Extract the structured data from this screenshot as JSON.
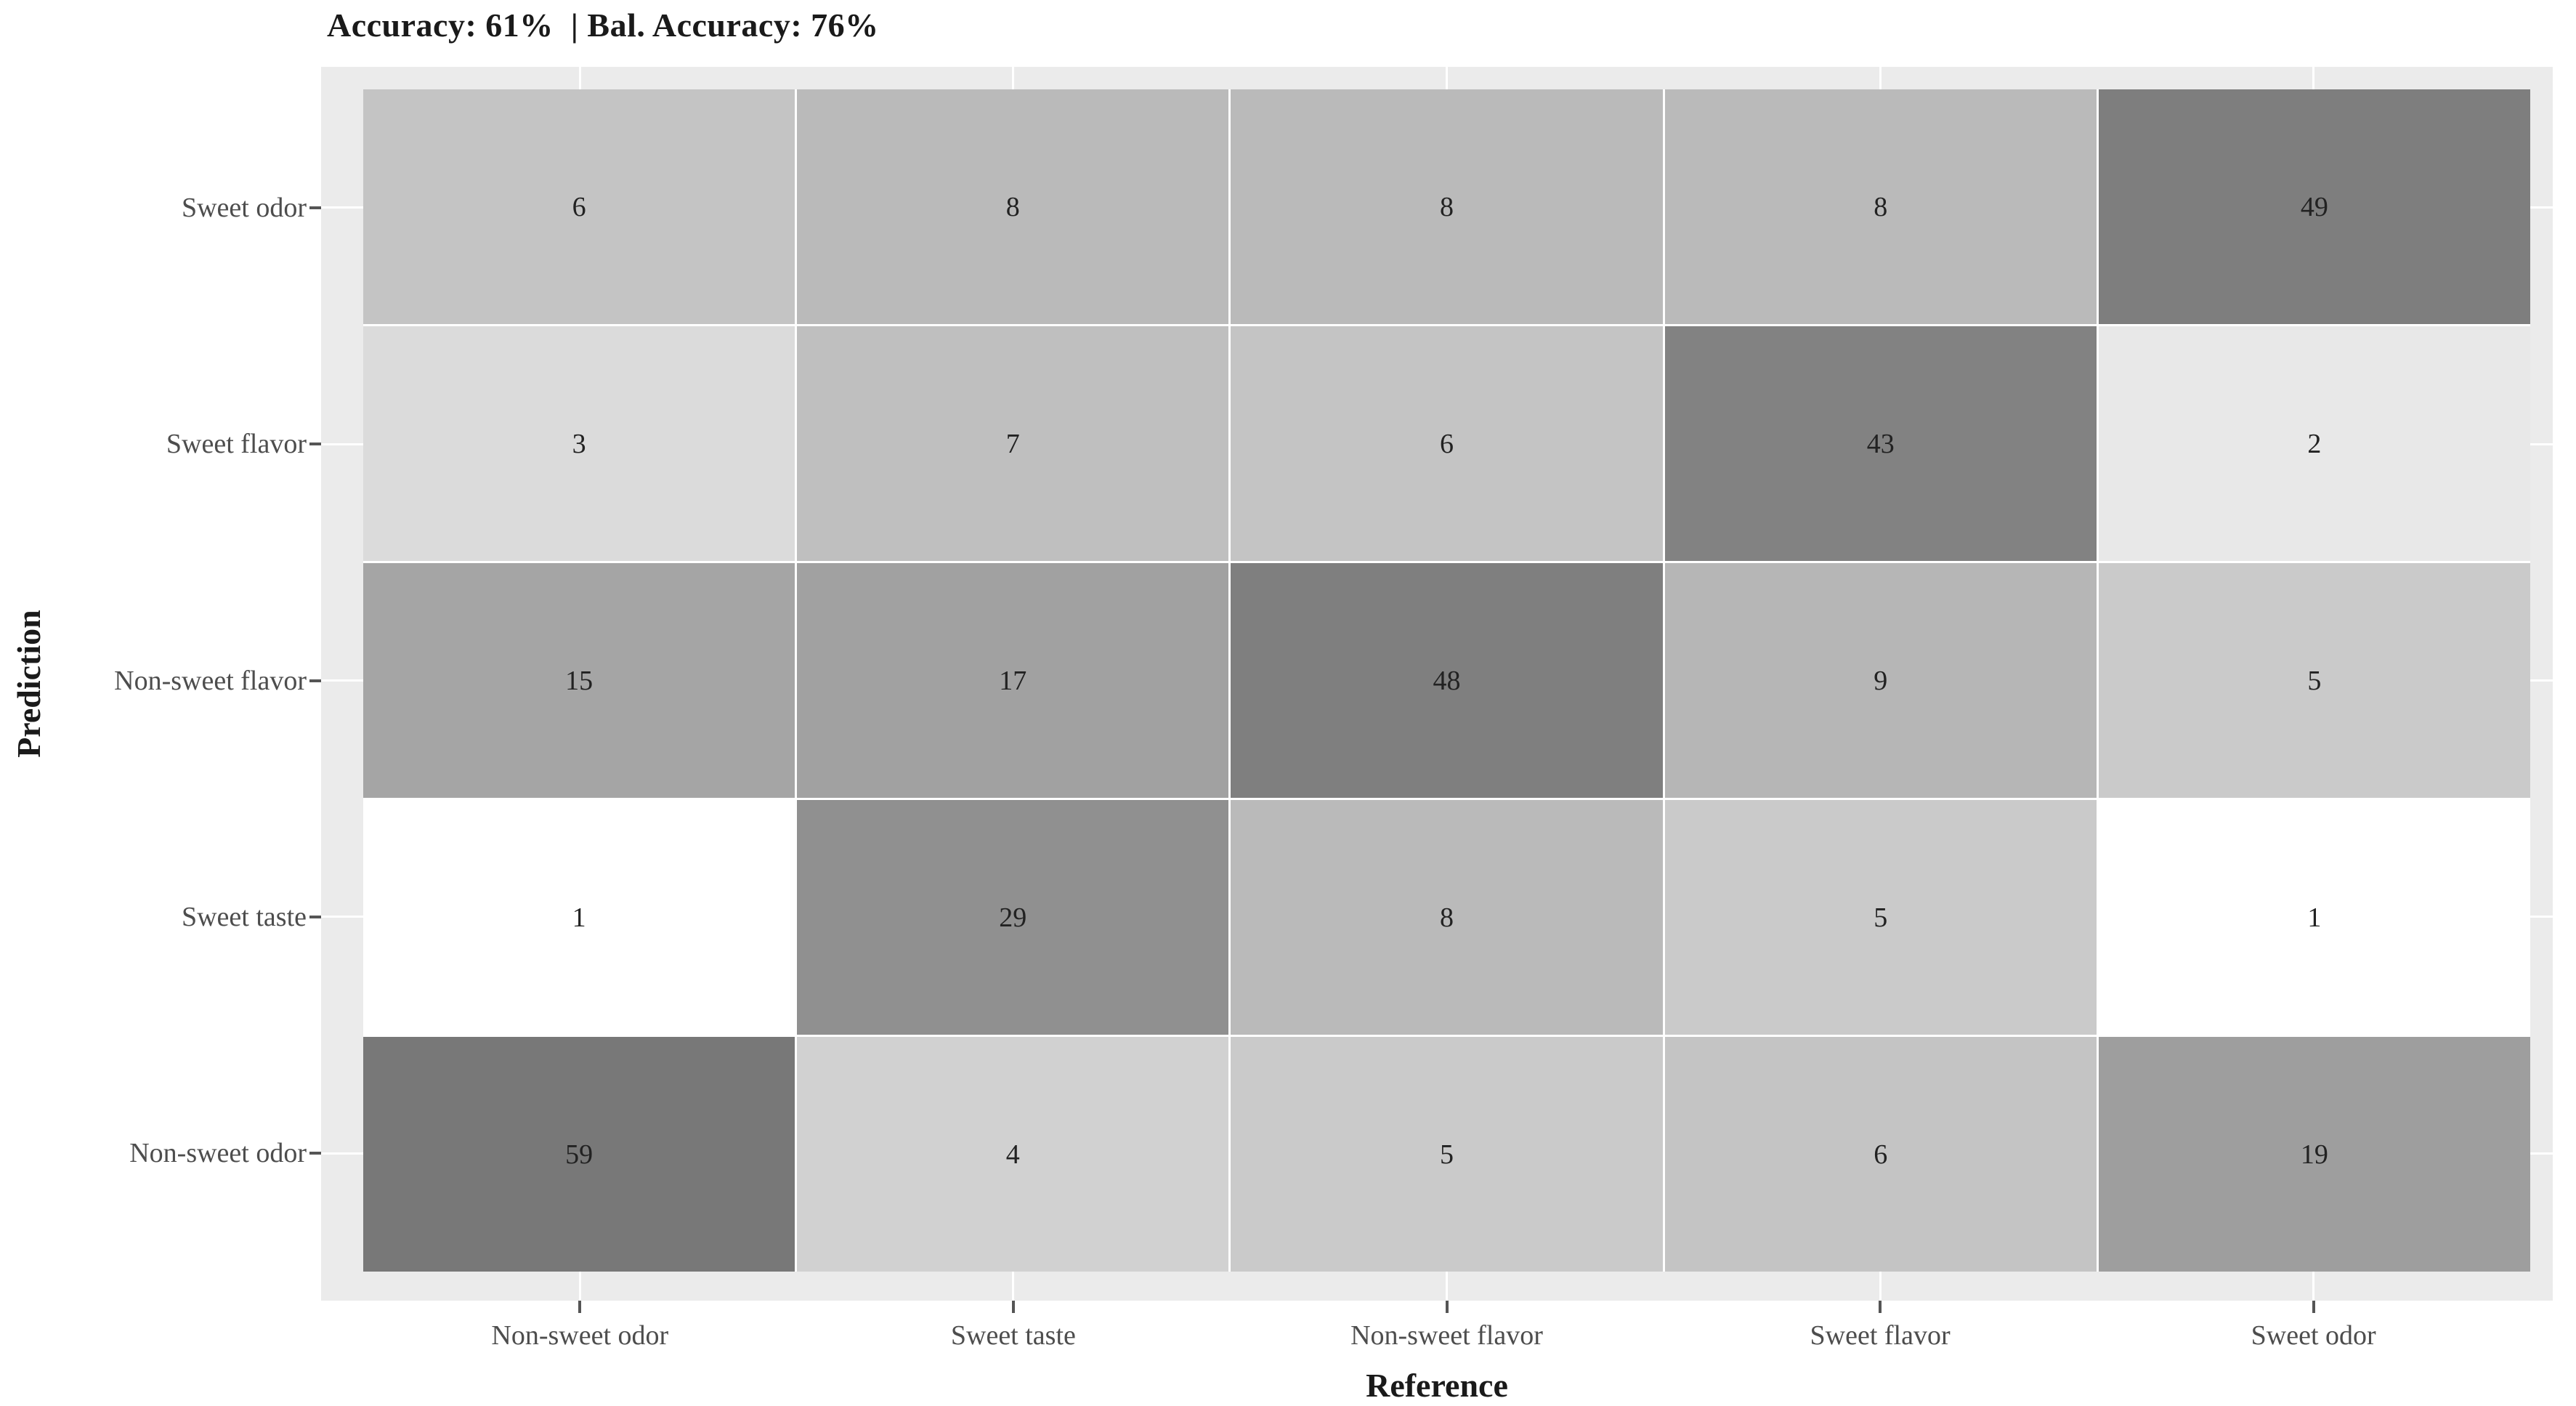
{
  "title": "Accuracy: 61%  | Bal. Accuracy: 76%",
  "metrics": {
    "accuracy": "61%",
    "balanced_accuracy": "76%"
  },
  "chart_data": {
    "type": "heatmap",
    "title": "Accuracy: 61%  | Bal. Accuracy: 76%",
    "xlabel": "Reference",
    "ylabel": "Prediction",
    "x_categories": [
      "Non-sweet odor",
      "Sweet taste",
      "Non-sweet flavor",
      "Sweet flavor",
      "Sweet odor"
    ],
    "y_categories_top_to_bottom": [
      "Sweet odor",
      "Sweet flavor",
      "Non-sweet flavor",
      "Sweet taste",
      "Non-sweet odor"
    ],
    "matrix_rows_top_to_bottom": [
      [
        6,
        8,
        8,
        8,
        49
      ],
      [
        3,
        7,
        6,
        43,
        2
      ],
      [
        15,
        17,
        48,
        9,
        5
      ],
      [
        1,
        29,
        8,
        5,
        1
      ],
      [
        59,
        4,
        5,
        6,
        19
      ]
    ],
    "color_scale": {
      "transform": "log",
      "domain": [
        1,
        59
      ],
      "low": "#FFFFFF",
      "high": "#787878"
    },
    "legend": "none",
    "grid": "white lines at category centers, visible in panel padding"
  },
  "colors": {
    "panel_background": "#EBEBEB",
    "tile_separator": "#FFFFFF",
    "gridline": "#FFFFFF",
    "tick_mark": "#555555",
    "tick_label": "#4D4D4D",
    "cell_number": "#222222",
    "title_text": "#1A1A1A",
    "page_background": "#FFFFFF"
  }
}
